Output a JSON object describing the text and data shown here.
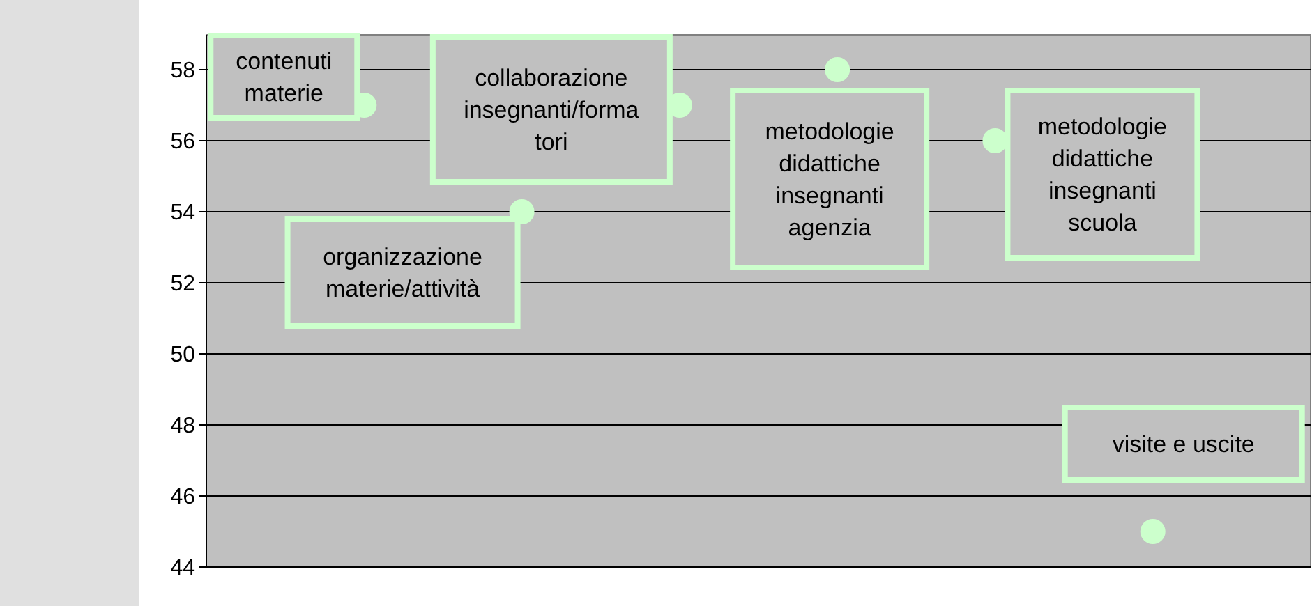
{
  "chart_data": {
    "type": "scatter",
    "categories": [
      null,
      null,
      null,
      null,
      null,
      null
    ],
    "series": [
      {
        "name": "contenuti materie",
        "color": "#ccffcc",
        "values": [
          57,
          null,
          null,
          null,
          null,
          null
        ]
      },
      {
        "name": "organizzazione materie/attività",
        "color": "#ccffcc",
        "values": [
          null,
          54,
          null,
          null,
          null,
          null
        ]
      },
      {
        "name": "collaborazione insegnanti/formatori",
        "color": "#ccffcc",
        "values": [
          null,
          null,
          57,
          null,
          null,
          null
        ]
      },
      {
        "name": "metodologie didattiche insegnanti agenzia",
        "color": "#ccffcc",
        "values": [
          null,
          null,
          null,
          58,
          null,
          null
        ]
      },
      {
        "name": "metodologie didattiche insegnanti scuola",
        "color": "#ccffcc",
        "values": [
          null,
          null,
          null,
          null,
          56,
          null
        ]
      },
      {
        "name": "visite e uscite",
        "color": "#ccffcc",
        "values": [
          null,
          null,
          null,
          null,
          null,
          45
        ]
      }
    ],
    "ylim": [
      44,
      58
    ],
    "yticks": [
      44,
      46,
      48,
      50,
      52,
      54,
      56,
      58
    ],
    "grid": "y",
    "marker": "circle",
    "tick_labels": "y"
  }
}
